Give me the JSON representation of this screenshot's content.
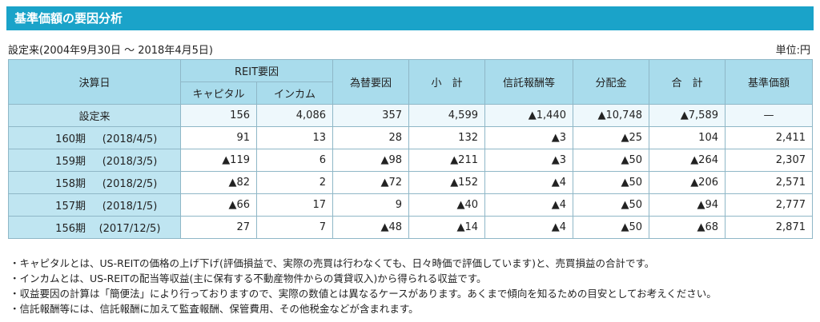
{
  "title": "基準価額の要因分析",
  "period": "設定来(2004年9月30日 〜 2018年4月5日)",
  "unit": "単位:円",
  "headers": {
    "settlement": "決算日",
    "reit_group": "REIT要因",
    "capital": "キャピタル",
    "income": "インカム",
    "fx": "為替要因",
    "subtotal": "小　計",
    "trust_fee": "信託報酬等",
    "distribution": "分配金",
    "total": "合　計",
    "nav": "基準価額"
  },
  "since_row": {
    "label": "設定来",
    "capital": "156",
    "income": "4,086",
    "fx": "357",
    "subtotal": "4,599",
    "trust_fee": "▲1,440",
    "distribution": "▲10,748",
    "total": "▲7,589",
    "nav": "—"
  },
  "rows": [
    {
      "period": "160期",
      "date": "(2018/4/5)",
      "capital": "91",
      "income": "13",
      "fx": "28",
      "subtotal": "132",
      "trust_fee": "▲3",
      "distribution": "▲25",
      "total": "104",
      "nav": "2,411"
    },
    {
      "period": "159期",
      "date": "(2018/3/5)",
      "capital": "▲119",
      "income": "6",
      "fx": "▲98",
      "subtotal": "▲211",
      "trust_fee": "▲3",
      "distribution": "▲50",
      "total": "▲264",
      "nav": "2,307"
    },
    {
      "period": "158期",
      "date": "(2018/2/5)",
      "capital": "▲82",
      "income": "2",
      "fx": "▲72",
      "subtotal": "▲152",
      "trust_fee": "▲4",
      "distribution": "▲50",
      "total": "▲206",
      "nav": "2,571"
    },
    {
      "period": "157期",
      "date": "(2018/1/5)",
      "capital": "▲66",
      "income": "17",
      "fx": "9",
      "subtotal": "▲40",
      "trust_fee": "▲4",
      "distribution": "▲50",
      "total": "▲94",
      "nav": "2,777"
    },
    {
      "period": "156期",
      "date": "(2017/12/5)",
      "capital": "27",
      "income": "7",
      "fx": "▲48",
      "subtotal": "▲14",
      "trust_fee": "▲4",
      "distribution": "▲50",
      "total": "▲68",
      "nav": "2,871"
    }
  ],
  "notes": [
    "・キャピタルとは、US-REITの価格の上げ下げ(評価損益で、実際の売買は行わなくても、日々時価で評価しています)と、売買損益の合計です。",
    "・インカムとは、US-REITの配当等収益(主に保有する不動産物件からの賃貸収入)から得られる収益です。",
    "・収益要因の計算は「簡便法」により行っておりますので、実際の数値とは異なるケースがあります。あくまで傾向を知るための目安としてお考えください。",
    "・信託報酬等には、信託報酬に加えて監査報酬、保管費用、その他税金などが含まれます。"
  ]
}
